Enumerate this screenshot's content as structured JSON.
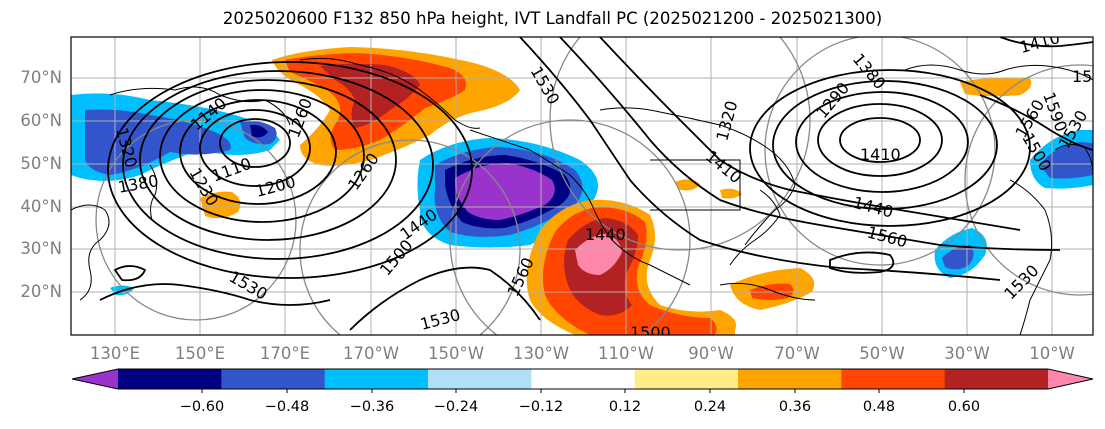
{
  "title": "2025020600 F132 850 hPa height, IVT Landfall PC (2025021200 - 2025021300)",
  "map": {
    "lat_labels": [
      "70°N",
      "60°N",
      "50°N",
      "40°N",
      "30°N",
      "20°N"
    ],
    "lon_labels": [
      "130°E",
      "150°E",
      "170°E",
      "170°W",
      "150°W",
      "130°W",
      "110°W",
      "90°W",
      "70°W",
      "50°W",
      "30°W",
      "10°W"
    ],
    "contour_labels": [
      "1110",
      "1200",
      "1260",
      "1140",
      "1380",
      "1230",
      "1320",
      "1260",
      "1530",
      "1440",
      "1500",
      "1560",
      "1440",
      "1530",
      "1500",
      "1530",
      "1320",
      "1410",
      "1290",
      "1380",
      "1440",
      "1560",
      "1410",
      "1560",
      "1590",
      "1530",
      "1500",
      "1410",
      "15",
      "1530"
    ],
    "colors": {
      "purple": "#9933cc",
      "navy": "#000080",
      "royal_blue": "#3355cc",
      "deep_sky": "#00bfff",
      "light_sky": "#b0e0f8",
      "light_yellow": "#ffee88",
      "orange": "#ffa500",
      "orange_red": "#ff4500",
      "firebrick": "#b22222",
      "pink": "#ff88aa"
    }
  },
  "colorbar": {
    "tick_labels": [
      "−0.60",
      "−0.48",
      "−0.36",
      "−0.24",
      "−0.12",
      "0.12",
      "0.24",
      "0.36",
      "0.48",
      "0.60"
    ],
    "colors": [
      "#9933cc",
      "#000080",
      "#3355cc",
      "#00bfff",
      "#b0e0f8",
      "#ffffff",
      "#ffee88",
      "#ffa500",
      "#ff4500",
      "#b22222",
      "#ff88aa"
    ]
  }
}
